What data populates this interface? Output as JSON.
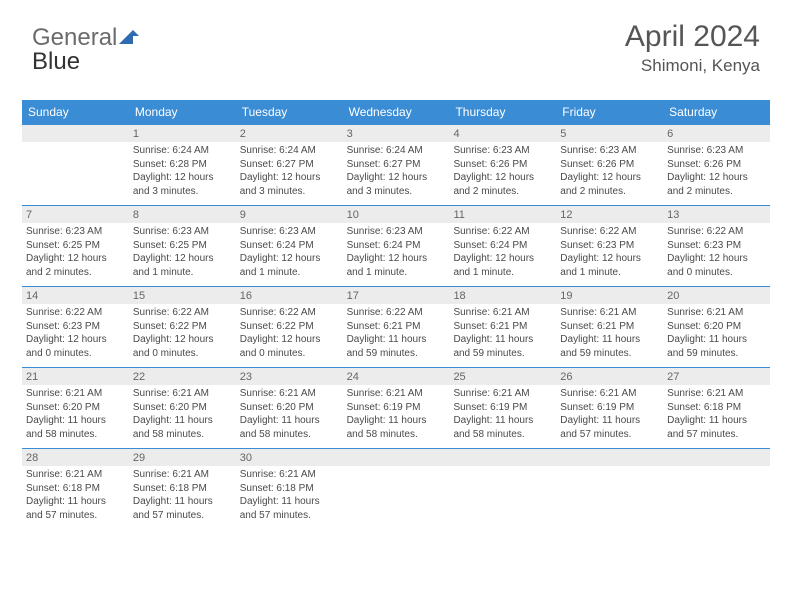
{
  "logo": {
    "part1": "General",
    "part2": "Blue"
  },
  "header": {
    "month": "April 2024",
    "location": "Shimoni, Kenya"
  },
  "colors": {
    "header_blue": "#3a8cd4",
    "logo_gray": "#6b6b6b",
    "logo_blue": "#3a7fc4",
    "daynum_bg": "#ececec",
    "rule": "#3a8cd4",
    "text": "#4a4a4a"
  },
  "dow": [
    "Sunday",
    "Monday",
    "Tuesday",
    "Wednesday",
    "Thursday",
    "Friday",
    "Saturday"
  ],
  "weeks": [
    [
      {
        "n": "",
        "sr": "",
        "ss": "",
        "dl": ""
      },
      {
        "n": "1",
        "sr": "Sunrise: 6:24 AM",
        "ss": "Sunset: 6:28 PM",
        "dl": "Daylight: 12 hours and 3 minutes."
      },
      {
        "n": "2",
        "sr": "Sunrise: 6:24 AM",
        "ss": "Sunset: 6:27 PM",
        "dl": "Daylight: 12 hours and 3 minutes."
      },
      {
        "n": "3",
        "sr": "Sunrise: 6:24 AM",
        "ss": "Sunset: 6:27 PM",
        "dl": "Daylight: 12 hours and 3 minutes."
      },
      {
        "n": "4",
        "sr": "Sunrise: 6:23 AM",
        "ss": "Sunset: 6:26 PM",
        "dl": "Daylight: 12 hours and 2 minutes."
      },
      {
        "n": "5",
        "sr": "Sunrise: 6:23 AM",
        "ss": "Sunset: 6:26 PM",
        "dl": "Daylight: 12 hours and 2 minutes."
      },
      {
        "n": "6",
        "sr": "Sunrise: 6:23 AM",
        "ss": "Sunset: 6:26 PM",
        "dl": "Daylight: 12 hours and 2 minutes."
      }
    ],
    [
      {
        "n": "7",
        "sr": "Sunrise: 6:23 AM",
        "ss": "Sunset: 6:25 PM",
        "dl": "Daylight: 12 hours and 2 minutes."
      },
      {
        "n": "8",
        "sr": "Sunrise: 6:23 AM",
        "ss": "Sunset: 6:25 PM",
        "dl": "Daylight: 12 hours and 1 minute."
      },
      {
        "n": "9",
        "sr": "Sunrise: 6:23 AM",
        "ss": "Sunset: 6:24 PM",
        "dl": "Daylight: 12 hours and 1 minute."
      },
      {
        "n": "10",
        "sr": "Sunrise: 6:23 AM",
        "ss": "Sunset: 6:24 PM",
        "dl": "Daylight: 12 hours and 1 minute."
      },
      {
        "n": "11",
        "sr": "Sunrise: 6:22 AM",
        "ss": "Sunset: 6:24 PM",
        "dl": "Daylight: 12 hours and 1 minute."
      },
      {
        "n": "12",
        "sr": "Sunrise: 6:22 AM",
        "ss": "Sunset: 6:23 PM",
        "dl": "Daylight: 12 hours and 1 minute."
      },
      {
        "n": "13",
        "sr": "Sunrise: 6:22 AM",
        "ss": "Sunset: 6:23 PM",
        "dl": "Daylight: 12 hours and 0 minutes."
      }
    ],
    [
      {
        "n": "14",
        "sr": "Sunrise: 6:22 AM",
        "ss": "Sunset: 6:23 PM",
        "dl": "Daylight: 12 hours and 0 minutes."
      },
      {
        "n": "15",
        "sr": "Sunrise: 6:22 AM",
        "ss": "Sunset: 6:22 PM",
        "dl": "Daylight: 12 hours and 0 minutes."
      },
      {
        "n": "16",
        "sr": "Sunrise: 6:22 AM",
        "ss": "Sunset: 6:22 PM",
        "dl": "Daylight: 12 hours and 0 minutes."
      },
      {
        "n": "17",
        "sr": "Sunrise: 6:22 AM",
        "ss": "Sunset: 6:21 PM",
        "dl": "Daylight: 11 hours and 59 minutes."
      },
      {
        "n": "18",
        "sr": "Sunrise: 6:21 AM",
        "ss": "Sunset: 6:21 PM",
        "dl": "Daylight: 11 hours and 59 minutes."
      },
      {
        "n": "19",
        "sr": "Sunrise: 6:21 AM",
        "ss": "Sunset: 6:21 PM",
        "dl": "Daylight: 11 hours and 59 minutes."
      },
      {
        "n": "20",
        "sr": "Sunrise: 6:21 AM",
        "ss": "Sunset: 6:20 PM",
        "dl": "Daylight: 11 hours and 59 minutes."
      }
    ],
    [
      {
        "n": "21",
        "sr": "Sunrise: 6:21 AM",
        "ss": "Sunset: 6:20 PM",
        "dl": "Daylight: 11 hours and 58 minutes."
      },
      {
        "n": "22",
        "sr": "Sunrise: 6:21 AM",
        "ss": "Sunset: 6:20 PM",
        "dl": "Daylight: 11 hours and 58 minutes."
      },
      {
        "n": "23",
        "sr": "Sunrise: 6:21 AM",
        "ss": "Sunset: 6:20 PM",
        "dl": "Daylight: 11 hours and 58 minutes."
      },
      {
        "n": "24",
        "sr": "Sunrise: 6:21 AM",
        "ss": "Sunset: 6:19 PM",
        "dl": "Daylight: 11 hours and 58 minutes."
      },
      {
        "n": "25",
        "sr": "Sunrise: 6:21 AM",
        "ss": "Sunset: 6:19 PM",
        "dl": "Daylight: 11 hours and 58 minutes."
      },
      {
        "n": "26",
        "sr": "Sunrise: 6:21 AM",
        "ss": "Sunset: 6:19 PM",
        "dl": "Daylight: 11 hours and 57 minutes."
      },
      {
        "n": "27",
        "sr": "Sunrise: 6:21 AM",
        "ss": "Sunset: 6:18 PM",
        "dl": "Daylight: 11 hours and 57 minutes."
      }
    ],
    [
      {
        "n": "28",
        "sr": "Sunrise: 6:21 AM",
        "ss": "Sunset: 6:18 PM",
        "dl": "Daylight: 11 hours and 57 minutes."
      },
      {
        "n": "29",
        "sr": "Sunrise: 6:21 AM",
        "ss": "Sunset: 6:18 PM",
        "dl": "Daylight: 11 hours and 57 minutes."
      },
      {
        "n": "30",
        "sr": "Sunrise: 6:21 AM",
        "ss": "Sunset: 6:18 PM",
        "dl": "Daylight: 11 hours and 57 minutes."
      },
      {
        "n": "",
        "sr": "",
        "ss": "",
        "dl": ""
      },
      {
        "n": "",
        "sr": "",
        "ss": "",
        "dl": ""
      },
      {
        "n": "",
        "sr": "",
        "ss": "",
        "dl": ""
      },
      {
        "n": "",
        "sr": "",
        "ss": "",
        "dl": ""
      }
    ]
  ]
}
